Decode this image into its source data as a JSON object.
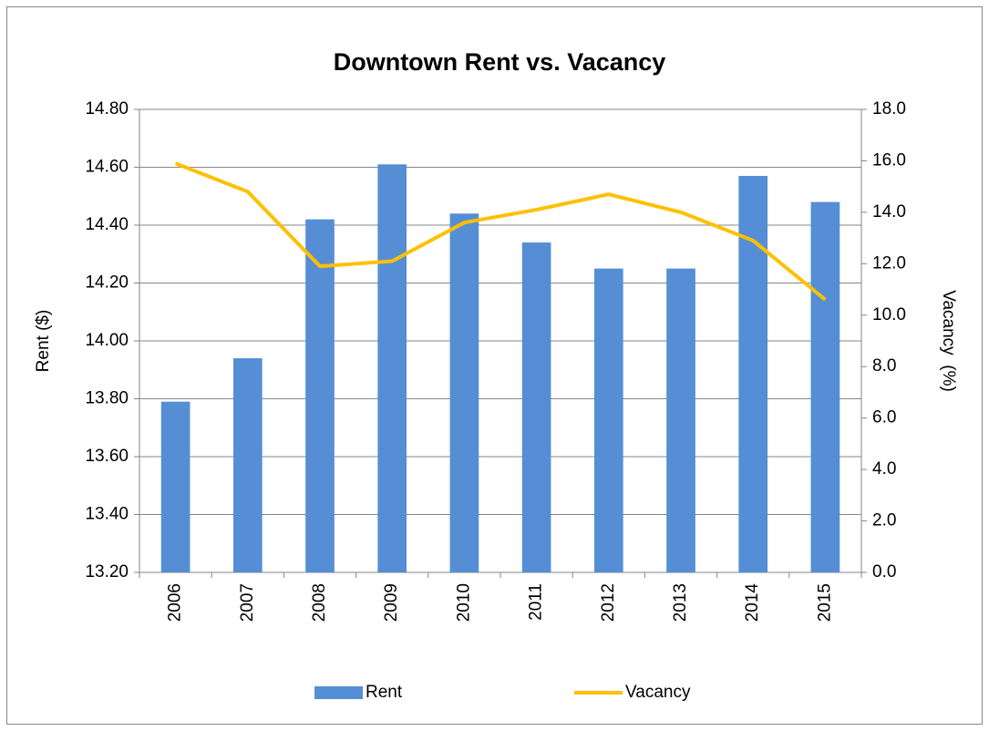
{
  "chart_data": {
    "type": "bar",
    "title": "Downtown Rent vs. Vacancy",
    "y_label": "Rent ($)",
    "y2_label": "Vacancy  (%)",
    "categories": [
      "2006",
      "2007",
      "2008",
      "2009",
      "2010",
      "2011",
      "2012",
      "2013",
      "2014",
      "2015"
    ],
    "series": [
      {
        "name": "Rent",
        "type": "bar",
        "color": "#558ed5",
        "values": [
          13.79,
          13.94,
          14.42,
          14.61,
          14.44,
          14.34,
          14.25,
          14.25,
          14.57,
          14.48
        ]
      },
      {
        "name": "Vacancy",
        "type": "line",
        "axis": "y2",
        "color": "#ffc000",
        "values": [
          15.9,
          14.8,
          11.9,
          12.1,
          13.6,
          14.1,
          14.7,
          14.0,
          12.9,
          10.6
        ]
      }
    ],
    "ylim": [
      13.2,
      14.8
    ],
    "yticks": [
      {
        "value": 13.2,
        "label": "13.20"
      },
      {
        "value": 13.4,
        "label": "13.40"
      },
      {
        "value": 13.6,
        "label": "13.60"
      },
      {
        "value": 13.8,
        "label": "13.80"
      },
      {
        "value": 14.0,
        "label": "14.00"
      },
      {
        "value": 14.2,
        "label": "14.20"
      },
      {
        "value": 14.4,
        "label": "14.40"
      },
      {
        "value": 14.6,
        "label": "14.60"
      },
      {
        "value": 14.8,
        "label": "14.80"
      }
    ],
    "y2lim": [
      0,
      18
    ],
    "y2ticks": [
      {
        "value": 0,
        "label": "0.0"
      },
      {
        "value": 2,
        "label": "2.0"
      },
      {
        "value": 4,
        "label": "4.0"
      },
      {
        "value": 6,
        "label": "6.0"
      },
      {
        "value": 8,
        "label": "8.0"
      },
      {
        "value": 10,
        "label": "10.0"
      },
      {
        "value": 12,
        "label": "12.0"
      },
      {
        "value": 14,
        "label": "14.0"
      },
      {
        "value": 16,
        "label": "16.0"
      },
      {
        "value": 18,
        "label": "18.0"
      }
    ],
    "grid": true,
    "legend": "bottom"
  }
}
